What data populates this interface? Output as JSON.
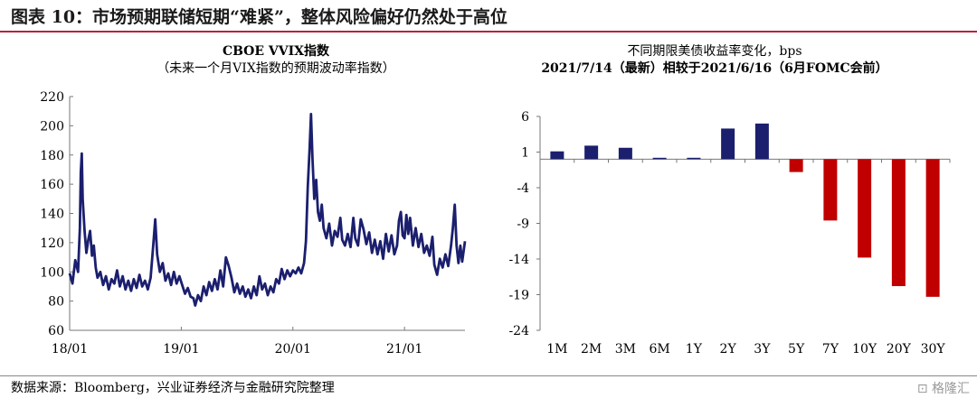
{
  "figure_title": "图表 10：市场预期联储短期“难紧”，整体风险偏好仍然处于高位",
  "source_note": "数据来源：Bloomberg，兴业证券经济与金融研究院整理",
  "watermark": "格隆汇",
  "colors": {
    "title_rule": "#b8223a",
    "vvix_line": "#1b1f6e",
    "positive_bar": "#1b1f6e",
    "negative_bar": "#c00000"
  },
  "chart_data": [
    {
      "type": "line",
      "title": "CBOE VVIX指数",
      "subtitle": "（未来一个月VIX指数的预期波动率指数）",
      "ylim": [
        60,
        220
      ],
      "yticks": [
        60,
        80,
        100,
        120,
        140,
        160,
        180,
        200,
        220
      ],
      "xtick_labels": [
        "18/01",
        "19/01",
        "20/01",
        "21/01"
      ],
      "xtick_months": [
        0,
        12,
        24,
        36
      ],
      "xlim_months": [
        0,
        42.5
      ],
      "series": [
        {
          "points": [
            [
              0.0,
              99
            ],
            [
              0.3,
              92
            ],
            [
              0.6,
              108
            ],
            [
              0.9,
              100
            ],
            [
              1.1,
              130
            ],
            [
              1.2,
              168
            ],
            [
              1.3,
              181
            ],
            [
              1.4,
              150
            ],
            [
              1.6,
              128
            ],
            [
              1.8,
              113
            ],
            [
              2.0,
              122
            ],
            [
              2.2,
              128
            ],
            [
              2.4,
              111
            ],
            [
              2.6,
              118
            ],
            [
              2.8,
              103
            ],
            [
              3.0,
              96
            ],
            [
              3.3,
              100
            ],
            [
              3.6,
              91
            ],
            [
              3.9,
              97
            ],
            [
              4.2,
              88
            ],
            [
              4.5,
              95
            ],
            [
              4.8,
              92
            ],
            [
              5.1,
              101
            ],
            [
              5.4,
              90
            ],
            [
              5.7,
              97
            ],
            [
              6.0,
              88
            ],
            [
              6.3,
              94
            ],
            [
              6.6,
              87
            ],
            [
              6.9,
              95
            ],
            [
              7.2,
              89
            ],
            [
              7.5,
              98
            ],
            [
              7.8,
              90
            ],
            [
              8.1,
              94
            ],
            [
              8.4,
              88
            ],
            [
              8.7,
              96
            ],
            [
              9.0,
              119
            ],
            [
              9.2,
              136
            ],
            [
              9.4,
              112
            ],
            [
              9.7,
              100
            ],
            [
              10.0,
              106
            ],
            [
              10.3,
              94
            ],
            [
              10.6,
              99
            ],
            [
              10.9,
              91
            ],
            [
              11.2,
              100
            ],
            [
              11.5,
              92
            ],
            [
              11.8,
              97
            ],
            [
              12.1,
              91
            ],
            [
              12.4,
              85
            ],
            [
              12.7,
              89
            ],
            [
              13.0,
              83
            ],
            [
              13.3,
              82
            ],
            [
              13.5,
              77
            ],
            [
              13.8,
              84
            ],
            [
              14.1,
              80
            ],
            [
              14.4,
              90
            ],
            [
              14.7,
              84
            ],
            [
              15.0,
              93
            ],
            [
              15.3,
              87
            ],
            [
              15.6,
              95
            ],
            [
              15.9,
              88
            ],
            [
              16.2,
              101
            ],
            [
              16.5,
              90
            ],
            [
              16.8,
              110
            ],
            [
              17.1,
              104
            ],
            [
              17.4,
              96
            ],
            [
              17.7,
              86
            ],
            [
              18.0,
              92
            ],
            [
              18.3,
              85
            ],
            [
              18.6,
              90
            ],
            [
              18.9,
              83
            ],
            [
              19.2,
              88
            ],
            [
              19.5,
              82
            ],
            [
              19.8,
              90
            ],
            [
              20.1,
              84
            ],
            [
              20.4,
              97
            ],
            [
              20.7,
              88
            ],
            [
              21.0,
              92
            ],
            [
              21.3,
              84
            ],
            [
              21.6,
              90
            ],
            [
              21.9,
              86
            ],
            [
              22.2,
              95
            ],
            [
              22.5,
              92
            ],
            [
              22.8,
              102
            ],
            [
              23.1,
              95
            ],
            [
              23.4,
              101
            ],
            [
              23.7,
              97
            ],
            [
              24.0,
              101
            ],
            [
              24.3,
              99
            ],
            [
              24.6,
              103
            ],
            [
              24.9,
              99
            ],
            [
              25.2,
              106
            ],
            [
              25.4,
              121
            ],
            [
              25.6,
              158
            ],
            [
              25.8,
              185
            ],
            [
              25.95,
              208
            ],
            [
              26.1,
              178
            ],
            [
              26.3,
              150
            ],
            [
              26.5,
              163
            ],
            [
              26.7,
              141
            ],
            [
              26.9,
              135
            ],
            [
              27.1,
              146
            ],
            [
              27.3,
              130
            ],
            [
              27.6,
              123
            ],
            [
              27.9,
              133
            ],
            [
              28.2,
              118
            ],
            [
              28.5,
              128
            ],
            [
              28.8,
              124
            ],
            [
              29.1,
              137
            ],
            [
              29.3,
              122
            ],
            [
              29.6,
              118
            ],
            [
              29.9,
              126
            ],
            [
              30.2,
              117
            ],
            [
              30.5,
              137
            ],
            [
              30.7,
              123
            ],
            [
              31.0,
              118
            ],
            [
              31.3,
              136
            ],
            [
              31.6,
              129
            ],
            [
              31.9,
              119
            ],
            [
              32.2,
              127
            ],
            [
              32.5,
              113
            ],
            [
              32.8,
              122
            ],
            [
              33.1,
              112
            ],
            [
              33.4,
              121
            ],
            [
              33.7,
              109
            ],
            [
              34.0,
              126
            ],
            [
              34.3,
              114
            ],
            [
              34.6,
              125
            ],
            [
              34.9,
              112
            ],
            [
              35.2,
              118
            ],
            [
              35.4,
              135
            ],
            [
              35.6,
              141
            ],
            [
              35.8,
              125
            ],
            [
              36.0,
              123
            ],
            [
              36.2,
              139
            ],
            [
              36.4,
              126
            ],
            [
              36.6,
              137
            ],
            [
              36.9,
              118
            ],
            [
              37.2,
              130
            ],
            [
              37.5,
              117
            ],
            [
              37.8,
              126
            ],
            [
              38.1,
              113
            ],
            [
              38.4,
              118
            ],
            [
              38.7,
              111
            ],
            [
              39.0,
              124
            ],
            [
              39.2,
              105
            ],
            [
              39.5,
              98
            ],
            [
              39.8,
              109
            ],
            [
              40.1,
              103
            ],
            [
              40.4,
              112
            ],
            [
              40.7,
              104
            ],
            [
              41.0,
              118
            ],
            [
              41.2,
              130
            ],
            [
              41.4,
              146
            ],
            [
              41.6,
              118
            ],
            [
              41.8,
              106
            ],
            [
              42.0,
              118
            ],
            [
              42.2,
              107
            ],
            [
              42.5,
              121
            ]
          ]
        }
      ]
    },
    {
      "type": "bar",
      "title": "不同期限美债收益率变化，bps",
      "subtitle": "2021/7/14（最新）相较于2021/6/16（6月FOMC会前）",
      "ylim": [
        -24,
        6
      ],
      "yticks": [
        6,
        1,
        -4,
        -9,
        -14,
        -19,
        -24
      ],
      "categories": [
        "1M",
        "2M",
        "3M",
        "6M",
        "1Y",
        "2Y",
        "3Y",
        "5Y",
        "7Y",
        "10Y",
        "20Y",
        "30Y"
      ],
      "values": [
        1.1,
        1.9,
        1.6,
        0.2,
        0.2,
        4.3,
        5.0,
        -1.8,
        -8.6,
        -13.8,
        -17.8,
        -19.3
      ]
    }
  ]
}
